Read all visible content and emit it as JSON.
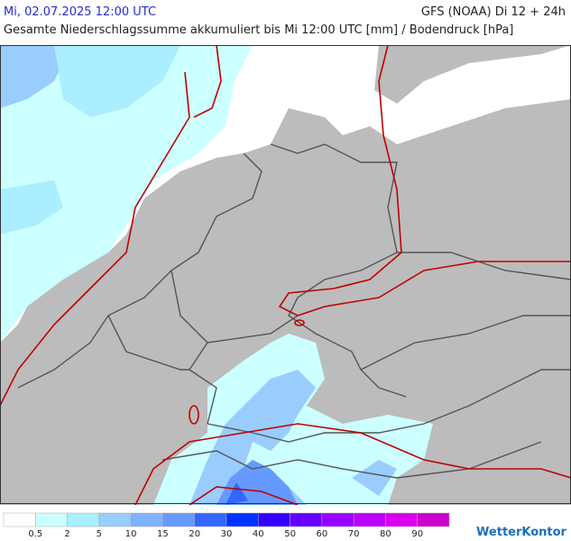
{
  "header": {
    "datetime": "Mi, 02.07.2025 12:00 UTC",
    "model": "GFS (NOAA) Di 12 + 24h",
    "subtitle": "Gesamte Niederschlagssumme akkumuliert bis Mi 12:00 UTC [mm] / Bodendruck [hPa]"
  },
  "legend": {
    "labels": [
      "0.5",
      "2",
      "5",
      "10",
      "15",
      "20",
      "30",
      "40",
      "50",
      "60",
      "70",
      "80",
      "90"
    ],
    "colors": [
      "#ffffff",
      "#ccffff",
      "#aaeeff",
      "#99ccff",
      "#7fb2ff",
      "#6699ff",
      "#3366ff",
      "#0033ff",
      "#3300ff",
      "#6600ff",
      "#9900ff",
      "#bb00ff",
      "#dd00ee",
      "#cc00cc"
    ]
  },
  "logo": "WetterKontor"
}
